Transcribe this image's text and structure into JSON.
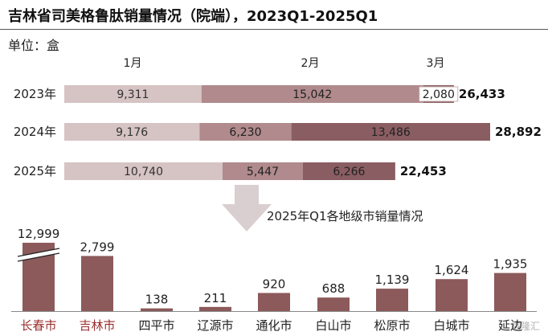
{
  "title": "吉林省司美格鲁肽销量情况（院端），2023Q1-2025Q1",
  "unit_label": "单位：盒",
  "sub_chart_title": "2025年Q1各地级市销量情况",
  "watermark": "格隆汇",
  "colors": {
    "jan": "#d6c3c3",
    "feb": "#b08a8c",
    "mar": "#8a5d62",
    "city_bar": "#8c5a5b",
    "highlight_text": "#9a2e2e"
  },
  "chart_data": [
    {
      "type": "bar",
      "orientation": "horizontal",
      "stacked": true,
      "categories": [
        "2023年",
        "2024年",
        "2025年"
      ],
      "series": [
        {
          "name": "1月",
          "values": [
            9311,
            9176,
            10740
          ]
        },
        {
          "name": "2月",
          "values": [
            15042,
            6230,
            5447
          ]
        },
        {
          "name": "3月",
          "values": [
            2080,
            13486,
            6266
          ]
        }
      ],
      "totals": [
        26433,
        28892,
        22453
      ],
      "value_labels": [
        [
          "9,311",
          "15,042",
          "2,080"
        ],
        [
          "9,176",
          "6,230",
          "13,486"
        ],
        [
          "10,740",
          "5,447",
          "6,266"
        ]
      ],
      "total_labels": [
        "26,433",
        "28,892",
        "22,453"
      ]
    },
    {
      "type": "bar",
      "title": "2025年Q1各地级市销量情况",
      "categories": [
        "长春市",
        "吉林市",
        "四平市",
        "辽源市",
        "通化市",
        "白山市",
        "松原市",
        "白城市",
        "延边"
      ],
      "values": [
        12999,
        2799,
        138,
        211,
        920,
        688,
        1139,
        1624,
        1935
      ],
      "value_labels": [
        "12,999",
        "2,799",
        "138",
        "211",
        "920",
        "688",
        "1,139",
        "1,624",
        "1,935"
      ],
      "axis_break": true,
      "highlighted": [
        "长春市",
        "吉林市"
      ]
    }
  ]
}
